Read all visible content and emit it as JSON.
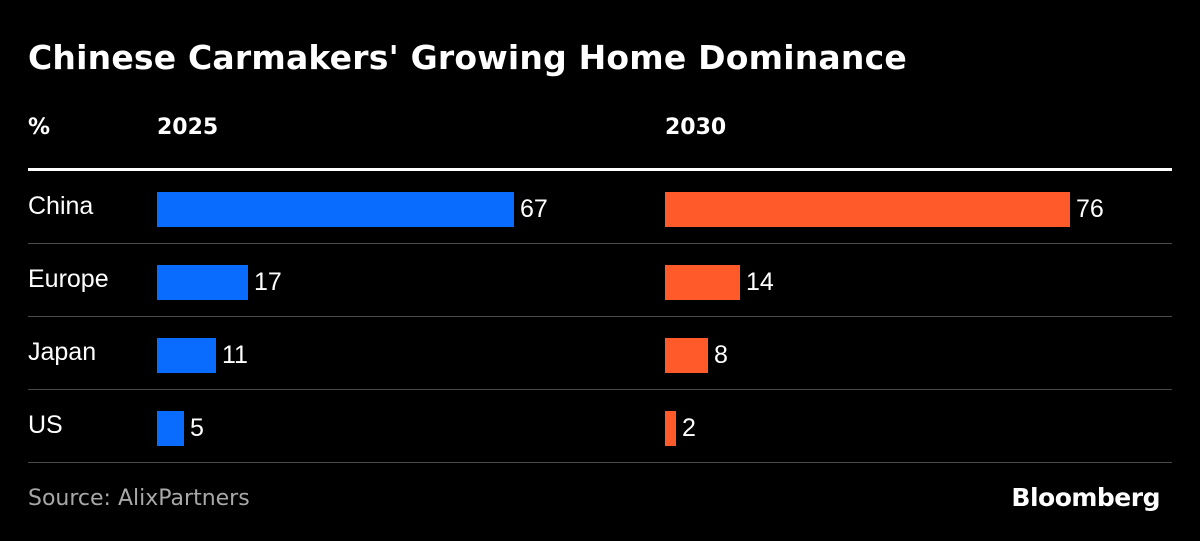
{
  "title": "Chinese Carmakers' Growing Home Dominance",
  "unit_label": "%",
  "source": "Source: AlixPartners",
  "brand": "Bloomberg",
  "colors": {
    "background": "#000000",
    "series_2025": "#0a6cff",
    "series_2030": "#ff5a2a",
    "divider": "#4a4a4a"
  },
  "chart_data": {
    "type": "bar",
    "orientation": "horizontal",
    "title": "Chinese Carmakers' Growing Home Dominance",
    "unit": "%",
    "categories": [
      "China",
      "Europe",
      "Japan",
      "US"
    ],
    "series": [
      {
        "name": "2025",
        "values": [
          67,
          17,
          11,
          5
        ]
      },
      {
        "name": "2030",
        "values": [
          76,
          14,
          8,
          2
        ]
      }
    ],
    "xlim": [
      0,
      100
    ],
    "grid": false,
    "legend": "column headers"
  }
}
